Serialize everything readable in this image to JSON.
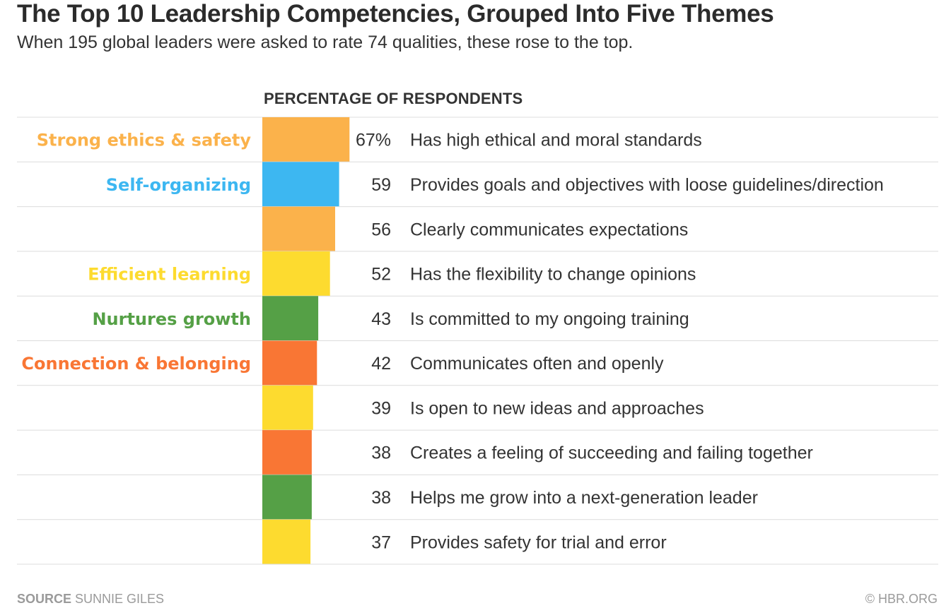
{
  "title": "The Top 10 Leadership Competencies, Grouped Into Five Themes",
  "subtitle": "When 195 global leaders were asked to rate 74 qualities, these rose to the top.",
  "column_header": "PERCENTAGE OF RESPONDENTS",
  "footer": {
    "source_label": "SOURCE",
    "source_value": "SUNNIE GILES",
    "credit": "© HBR.ORG"
  },
  "colors": {
    "ethics": "#FBB24B",
    "self_organizing": "#3DB7F1",
    "learning": "#FDDB2F",
    "growth": "#55A046",
    "connection": "#F97634",
    "rule": "#dcdcdc"
  },
  "chart_data": {
    "type": "bar",
    "orientation": "horizontal",
    "unit": "%",
    "xlim": [
      0,
      100
    ],
    "themes": [
      {
        "name": "Strong ethics & safety",
        "color": "#FBB24B"
      },
      {
        "name": "Self-organizing",
        "color": "#3DB7F1"
      },
      {
        "name": "Efficient learning",
        "color": "#FDDB2F"
      },
      {
        "name": "Nurtures growth",
        "color": "#55A046"
      },
      {
        "name": "Connection & belonging",
        "color": "#F97634"
      }
    ],
    "rows": [
      {
        "theme_label": "Strong ethics & safety",
        "color": "#FBB24B",
        "value": 67,
        "value_label": "67%",
        "category": "Has high ethical and moral standards"
      },
      {
        "theme_label": "Self-organizing",
        "color": "#3DB7F1",
        "value": 59,
        "value_label": "59",
        "category": "Provides goals and objectives with loose guidelines/direction"
      },
      {
        "theme_label": "",
        "color": "#FBB24B",
        "value": 56,
        "value_label": "56",
        "category": "Clearly communicates expectations"
      },
      {
        "theme_label": "Efficient learning",
        "color": "#FDDB2F",
        "value": 52,
        "value_label": "52",
        "category": "Has the flexibility to change opinions"
      },
      {
        "theme_label": "Nurtures growth",
        "color": "#55A046",
        "value": 43,
        "value_label": "43",
        "category": "Is committed to my ongoing training"
      },
      {
        "theme_label": "Connection & belonging",
        "color": "#F97634",
        "value": 42,
        "value_label": "42",
        "category": "Communicates often and openly"
      },
      {
        "theme_label": "",
        "color": "#FDDB2F",
        "value": 39,
        "value_label": "39",
        "category": "Is open to new ideas and approaches"
      },
      {
        "theme_label": "",
        "color": "#F97634",
        "value": 38,
        "value_label": "38",
        "category": "Creates a feeling of succeeding and failing together"
      },
      {
        "theme_label": "",
        "color": "#55A046",
        "value": 38,
        "value_label": "38",
        "category": "Helps me grow into a next-generation leader"
      },
      {
        "theme_label": "",
        "color": "#FDDB2F",
        "value": 37,
        "value_label": "37",
        "category": "Provides safety for trial and error"
      }
    ]
  }
}
